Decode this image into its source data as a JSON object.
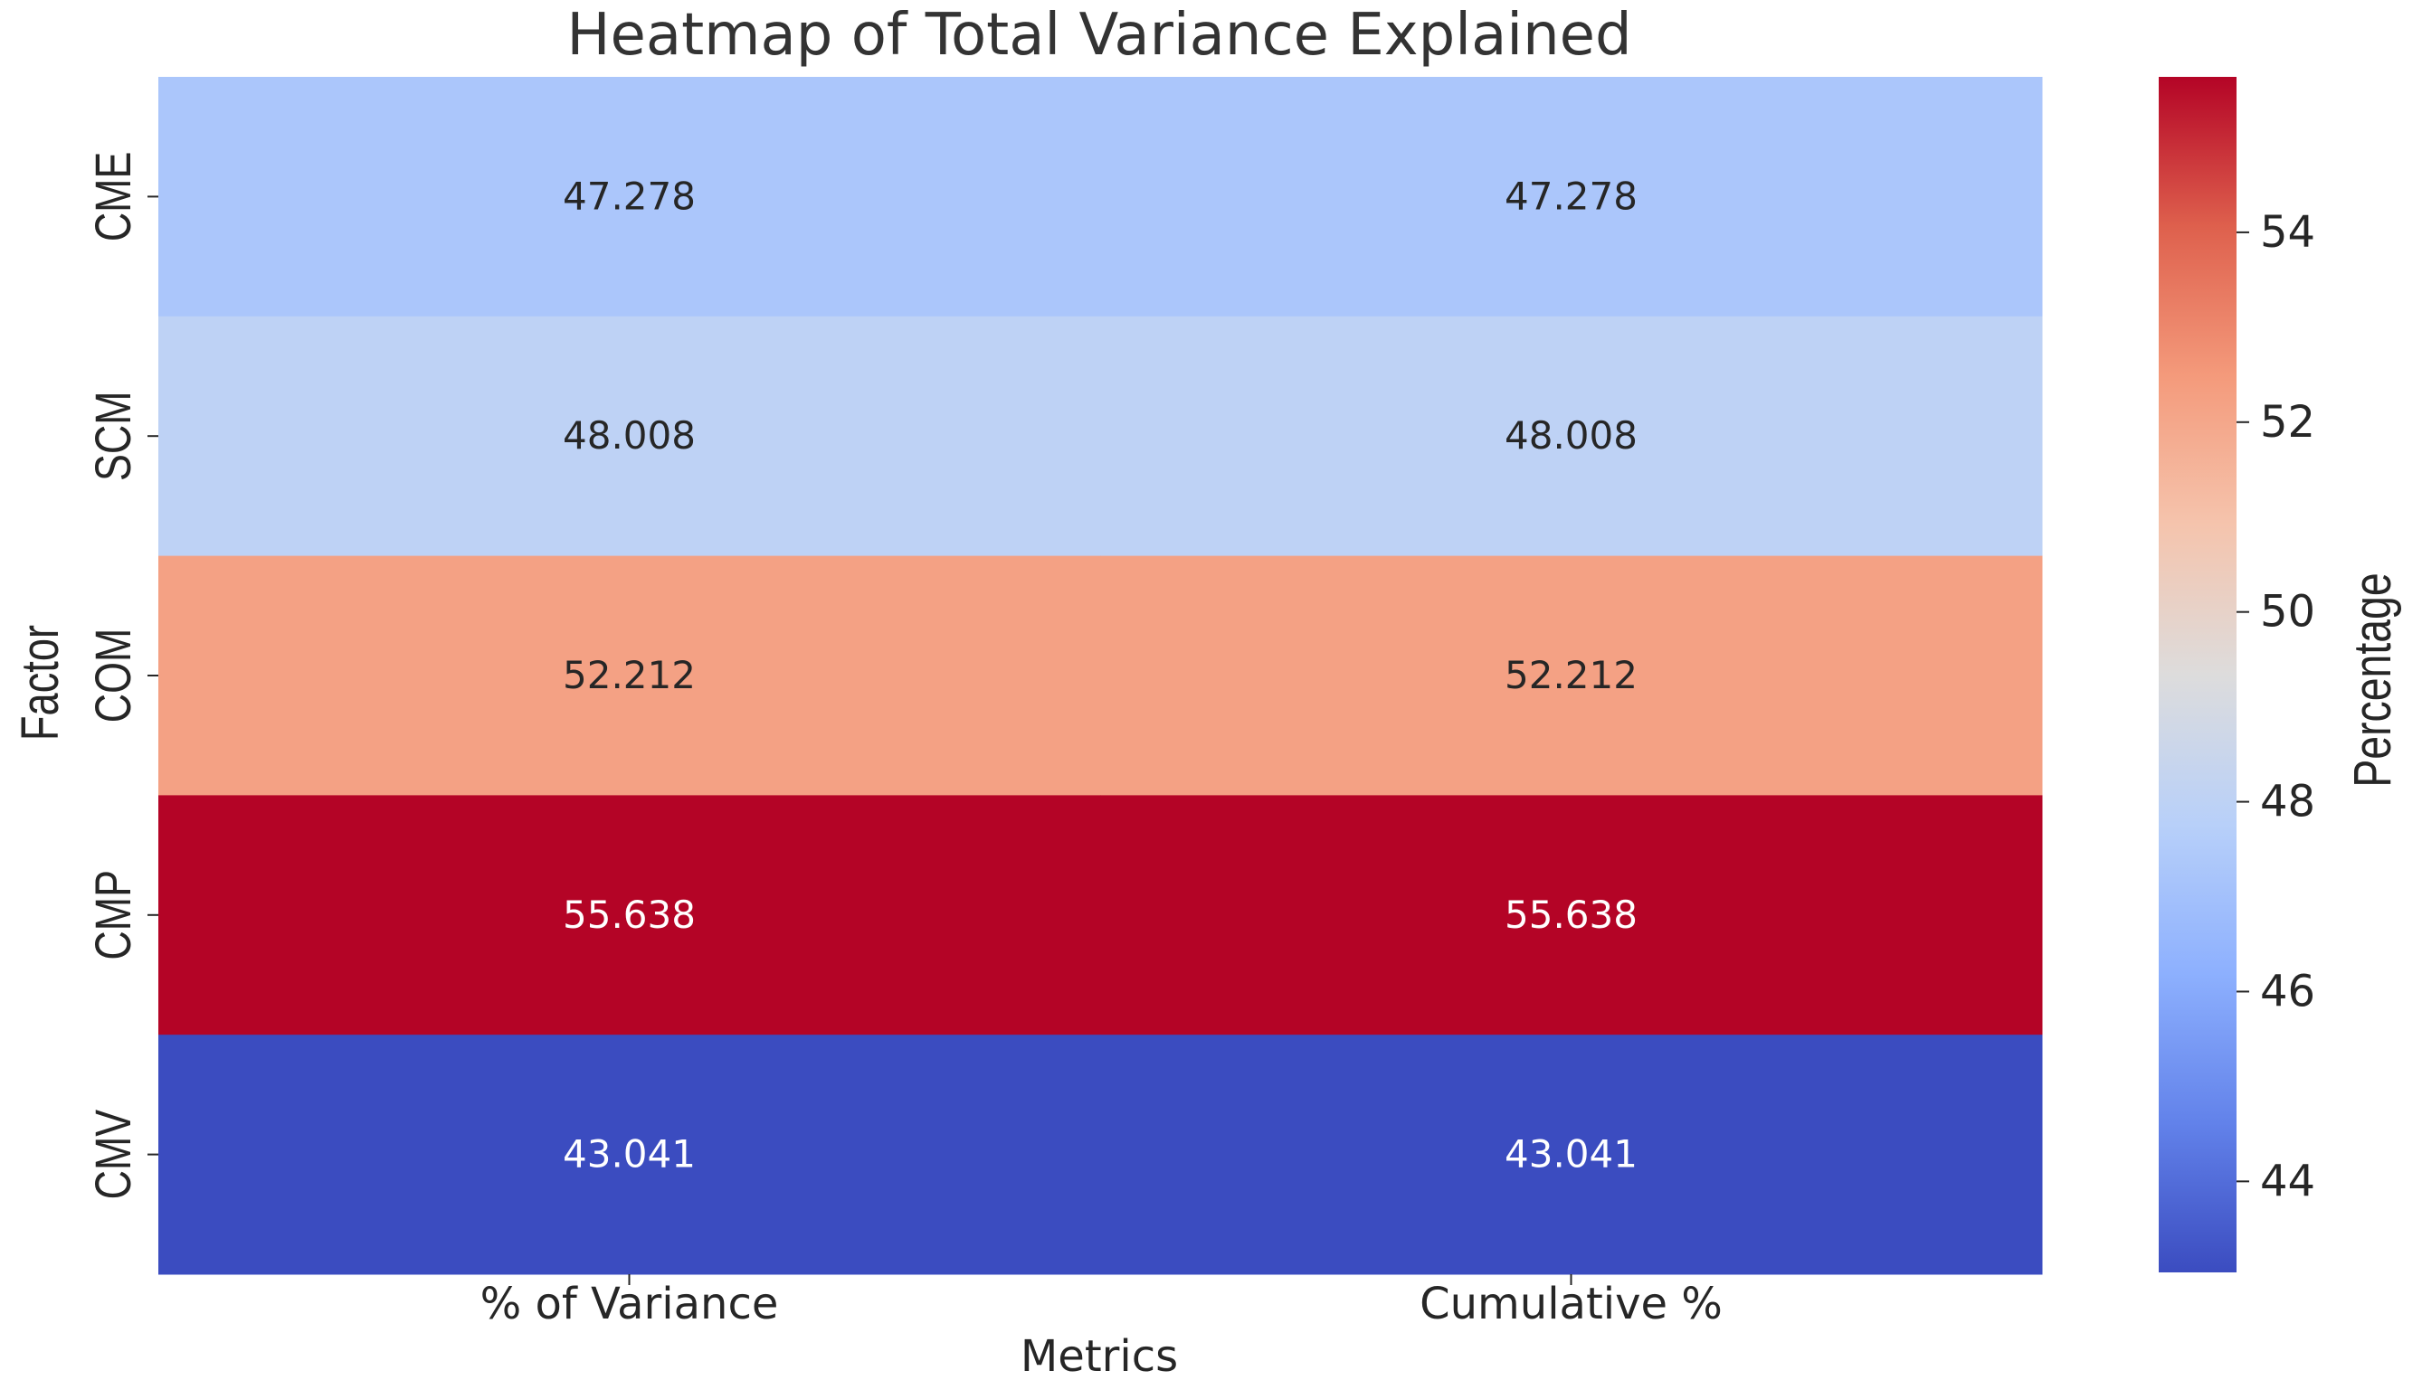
{
  "chart_data": {
    "type": "heatmap",
    "title": "Heatmap of Total Variance Explained",
    "xlabel": "Metrics",
    "ylabel": "Factor",
    "columns": [
      "% of Variance",
      "Cumulative %"
    ],
    "rows": [
      "CME",
      "SCM",
      "COM",
      "CMP",
      "CMV"
    ],
    "values": [
      [
        47.278,
        47.278
      ],
      [
        48.008,
        48.008
      ],
      [
        52.212,
        52.212
      ],
      [
        55.638,
        55.638
      ],
      [
        43.041,
        43.041
      ]
    ],
    "colorbar": {
      "label": "Percentage",
      "ticks": [
        44,
        46,
        48,
        50,
        52,
        54
      ],
      "range": [
        43.041,
        55.638
      ],
      "colormap": "coolwarm"
    },
    "grid": false
  },
  "colors": {
    "text_dark": "#262626",
    "text_light": "#ffffff",
    "axis": "#262626",
    "title": "#333333"
  }
}
